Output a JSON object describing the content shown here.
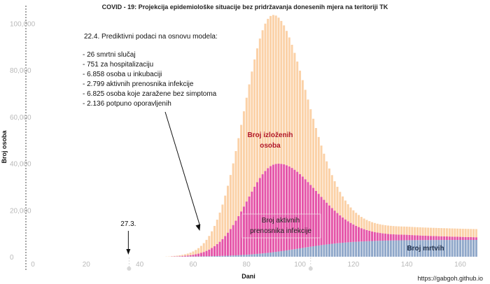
{
  "chart_data": {
    "type": "bar",
    "stacked": true,
    "title": "COVID - 19: Projekcija epidemiološke situacije bez pridržavanja donesenih mjera na teritoriji TK",
    "xlabel": "Dani",
    "ylabel": "Broj osoba",
    "xlim": [
      0,
      168
    ],
    "ylim": [
      0,
      104000
    ],
    "x_ticks": [
      "0",
      "20",
      "40",
      "60",
      "80",
      "100",
      "120",
      "140",
      "160"
    ],
    "y_ticks": [
      "0",
      "20,000",
      "40,000",
      "60,000",
      "80,000",
      "100,000"
    ],
    "x_start": 36,
    "x_end": 166,
    "peak_total_x": 89,
    "peak_total_value": 103000,
    "peak_active_x": 91,
    "peak_active_value": 37500,
    "final_deaths_value": 7200,
    "series": [
      {
        "name": "Broj mrtvih",
        "color": "#8fa7c9"
      },
      {
        "name": "Broj aktivnih prenosnika infekcije",
        "color": "#e554a8"
      },
      {
        "name": "Broj izloženih osoba",
        "color": "#fbd1a7"
      }
    ],
    "grid": false,
    "annotations": {
      "header": "22.4.  Prediktivni podaci na osnovu modela:",
      "lines": [
        "- 26        smrtni slučaj",
        "- 751        za hospitalizaciju",
        "- 6.858    osoba u inkubaciji",
        "- 2.799    aktivnih prenosnika infekcije",
        "- 6.825    osoba koje zaražene bez simptoma",
        "- 2.136    potpuno oporavljenih"
      ],
      "date_marker": "27.3.",
      "date_marker_x": 36,
      "prediction_arrow_x": 63,
      "label_exposed_1": "Broj izloženih",
      "label_exposed_2": "osoba",
      "label_active_1": "Broj aktivnih",
      "label_active_2": "prenosnika infekcije",
      "label_deaths": "Broj mrtvih"
    },
    "source": "https://gabgoh.github.io"
  }
}
